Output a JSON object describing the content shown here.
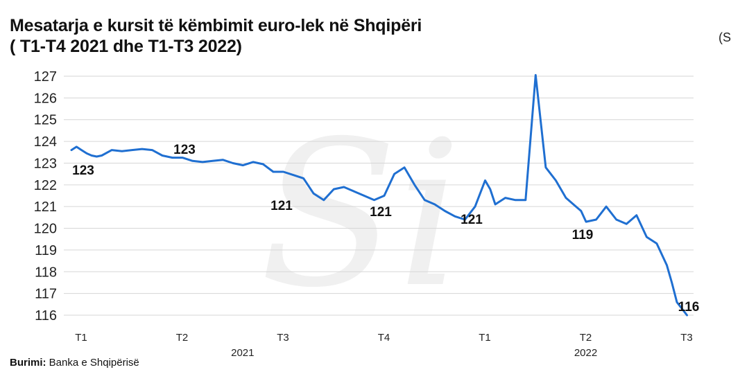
{
  "title_line1": "Mesatarja e kursit të këmbimit euro-lek në Shqipëri",
  "title_line2": "( T1-T4 2021 dhe T1-T3 2022)",
  "corner_text": "(S",
  "source": {
    "label": "Burimi:",
    "text": "Banka e Shqipërisë"
  },
  "watermark": "Si",
  "colors": {
    "line": "#1f6fd1",
    "grid": "#d6d6d6",
    "text": "#111111",
    "watermark": "#f0f0f0"
  },
  "chart_data": {
    "type": "line",
    "title": "Mesatarja e kursit të këmbimit euro-lek në Shqipëri ( T1-T4 2021 dhe T1-T3 2022)",
    "ylim": [
      116,
      127
    ],
    "yticks": [
      "116",
      "117",
      "118",
      "119",
      "120",
      "121",
      "122",
      "123",
      "124",
      "125",
      "126",
      "127"
    ],
    "grid": true,
    "x_quarter_labels": [
      "T1",
      "T2",
      "T3",
      "T4",
      "T1",
      "T2",
      "T3"
    ],
    "x_year_labels": [
      "2021",
      "2022"
    ],
    "annotations": [
      "123",
      "123",
      "121",
      "121",
      "121",
      "119",
      "116"
    ],
    "series": [
      {
        "x": [
          0,
          0.05,
          0.1,
          0.15,
          0.2,
          0.25,
          0.3,
          0.4,
          0.5,
          0.6,
          0.7,
          0.8,
          0.9,
          1.0,
          1.1,
          1.2,
          1.3,
          1.4,
          1.5,
          1.6,
          1.7,
          1.8,
          1.9,
          2.0,
          2.1,
          2.2,
          2.3,
          2.4,
          2.5,
          2.6,
          2.7,
          2.8,
          2.9,
          3.0,
          3.1,
          3.2,
          3.3,
          3.4,
          3.5,
          3.6,
          3.7,
          3.8,
          3.9,
          4.0,
          4.1,
          4.15,
          4.2,
          4.3,
          4.4,
          4.5,
          4.6,
          4.7,
          4.8,
          4.9,
          5.0,
          5.05,
          5.1,
          5.2,
          5.3,
          5.4,
          5.5,
          5.6,
          5.7,
          5.8,
          5.9,
          5.95,
          6.0,
          6.1
        ],
        "values": [
          123.6,
          123.75,
          123.6,
          123.45,
          123.35,
          123.3,
          123.35,
          123.6,
          123.55,
          123.6,
          123.65,
          123.6,
          123.35,
          123.25,
          123.25,
          123.1,
          123.05,
          123.1,
          123.15,
          123.0,
          122.9,
          123.05,
          122.95,
          122.6,
          122.6,
          122.45,
          122.3,
          121.6,
          121.3,
          121.8,
          121.9,
          121.7,
          121.5,
          121.3,
          121.5,
          122.5,
          122.8,
          122.0,
          121.3,
          121.1,
          120.8,
          120.55,
          120.4,
          121.0,
          122.2,
          121.8,
          121.1,
          121.4,
          121.3,
          121.3,
          127.05,
          122.8,
          122.2,
          121.4,
          121.0,
          120.8,
          120.3,
          120.4,
          121.0,
          120.4,
          120.2,
          120.6,
          119.6,
          119.3,
          118.3,
          117.5,
          116.6,
          116.0
        ]
      }
    ]
  }
}
